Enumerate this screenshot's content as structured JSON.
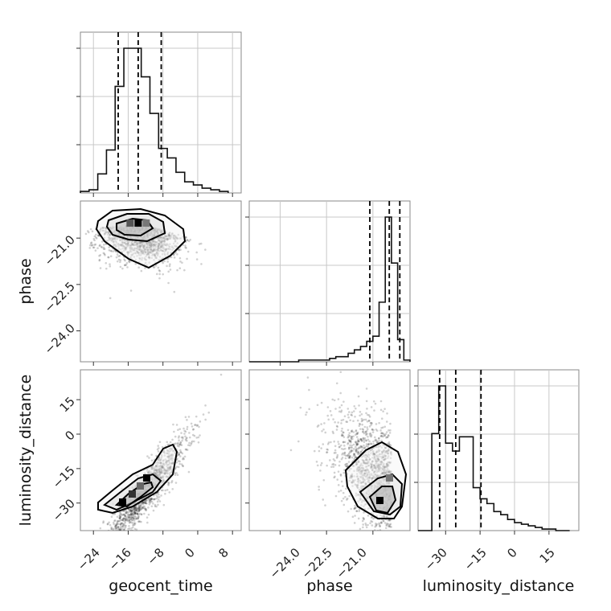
{
  "chart_data": {
    "type": "corner",
    "parameters": [
      "geocent_time",
      "phase",
      "luminosity_distance"
    ],
    "ranges": {
      "geocent_time": [
        -27,
        10
      ],
      "phase": [
        -25.0,
        -19.8
      ],
      "luminosity_distance": [
        -42,
        28
      ]
    },
    "ticks": {
      "geocent_time": [
        -24,
        -16,
        -8,
        0,
        8
      ],
      "phase": [
        -24.0,
        -22.5,
        -21.0
      ],
      "luminosity_distance": [
        -30,
        -15,
        0,
        15
      ]
    },
    "tick_labels": {
      "geocent_time": [
        "−24",
        "−16",
        "−8",
        "0",
        "8"
      ],
      "phase": [
        "−24.0",
        "−22.5",
        "−21.0"
      ],
      "luminosity_distance": [
        "−30",
        "−15",
        "0",
        "15"
      ]
    },
    "quantiles": {
      "geocent_time": [
        -18.3,
        -13.7,
        -8.4
      ],
      "phase": [
        -21.1,
        -20.47,
        -20.13
      ],
      "luminosity_distance": [
        -32.6,
        -25.6,
        -14.6
      ]
    },
    "histograms": {
      "geocent_time": {
        "edges": [
          -27,
          -25,
          -23,
          -21,
          -19,
          -17,
          -15,
          -13,
          -11,
          -9,
          -7,
          -5,
          -3,
          -1,
          1,
          3,
          5,
          7
        ],
        "counts": [
          0.01,
          0.02,
          0.12,
          0.27,
          0.67,
          0.91,
          0.91,
          0.73,
          0.5,
          0.28,
          0.22,
          0.13,
          0.07,
          0.05,
          0.03,
          0.02,
          0.01
        ]
      },
      "phase": {
        "edges": [
          -25.0,
          -24.8,
          -24.6,
          -24.4,
          -24.2,
          -24.0,
          -23.8,
          -23.6,
          -23.4,
          -23.2,
          -23.0,
          -22.8,
          -22.6,
          -22.4,
          -22.2,
          -22.0,
          -21.8,
          -21.6,
          -21.4,
          -21.2,
          -21.0,
          -20.8,
          -20.6,
          -20.4,
          -20.2,
          -20.0,
          -19.8
        ],
        "counts": [
          0.0,
          0.0,
          0.0,
          0.0,
          0.0,
          0.0,
          0.0,
          0.0,
          0.01,
          0.01,
          0.01,
          0.01,
          0.01,
          0.02,
          0.03,
          0.03,
          0.05,
          0.07,
          0.09,
          0.12,
          0.15,
          0.35,
          0.85,
          0.58,
          0.13,
          0.01
        ]
      },
      "luminosity_distance": {
        "edges": [
          -42,
          -39,
          -36,
          -33,
          -30,
          -27,
          -24,
          -21,
          -18,
          -15,
          -12,
          -9,
          -6,
          -3,
          0,
          3,
          6,
          9,
          12,
          15,
          18,
          21,
          24
        ],
        "counts": [
          0.0,
          0.0,
          0.61,
          0.91,
          0.55,
          0.5,
          0.59,
          0.59,
          0.27,
          0.2,
          0.17,
          0.12,
          0.1,
          0.07,
          0.05,
          0.04,
          0.03,
          0.02,
          0.01,
          0.01,
          0.0,
          0.0
        ]
      }
    },
    "pair_modes": {
      "phase_vs_geocent_time": {
        "x": -13.8,
        "y": -20.5
      },
      "luminosity_distance_vs_geocent_time": {
        "x": -13.0,
        "y": -26.0
      },
      "luminosity_distance_vs_phase": {
        "x": -20.3,
        "y": -28.0
      }
    }
  }
}
